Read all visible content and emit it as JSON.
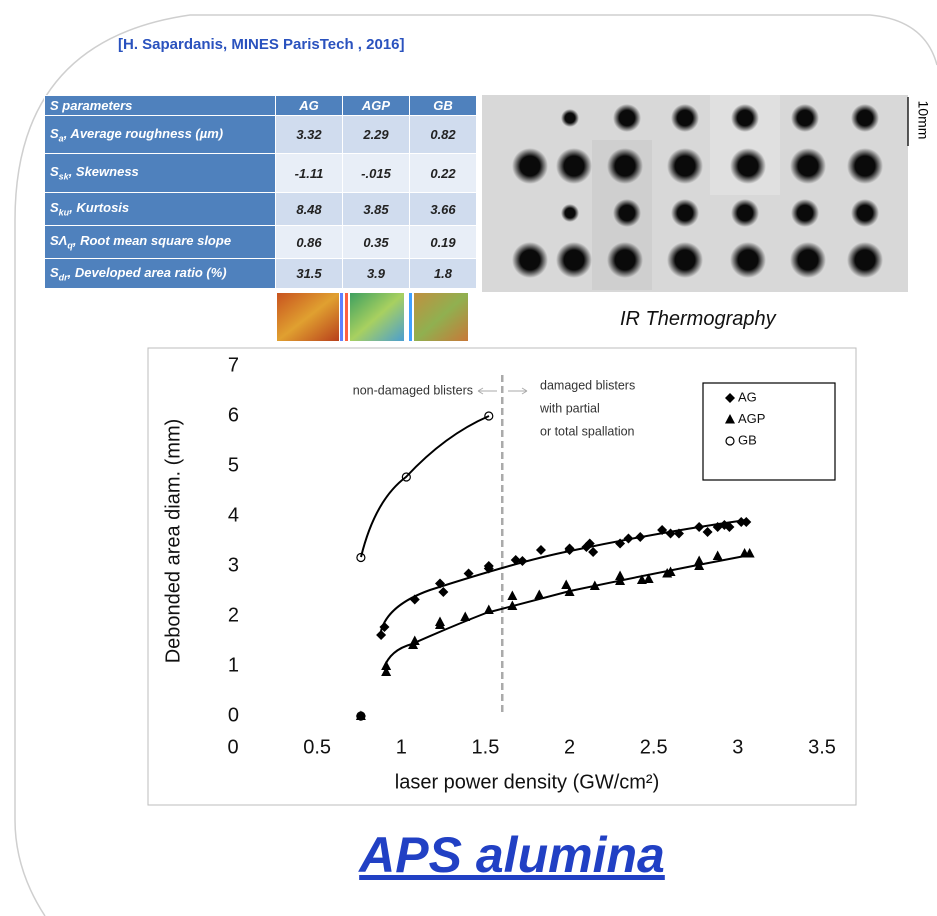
{
  "citation": "[H. Sapardanis, MINES ParisTech , 2016]",
  "table": {
    "header": [
      "S parameters",
      "AG",
      "AGP",
      "GB"
    ],
    "rows": [
      {
        "symbol": "S",
        "sub": "a",
        "desc": ", Average roughness (µm)",
        "values": [
          "3.32",
          "2.29",
          "0.82"
        ]
      },
      {
        "symbol": "S",
        "sub": "sk",
        "desc": ", Skewness",
        "values": [
          "-1.11",
          "-.015",
          "0.22"
        ]
      },
      {
        "symbol": "S",
        "sub": "ku",
        "desc": ", Kurtosis",
        "values": [
          "8.48",
          "3.85",
          "3.66"
        ]
      },
      {
        "symbol": "SΛ",
        "sub": "q",
        "desc": ", Root mean square slope",
        "values": [
          "0.86",
          "0.35",
          "0.19"
        ]
      },
      {
        "symbol": "S",
        "sub": "dr",
        "desc": ", Developed area ratio (%)",
        "values": [
          "31.5",
          "3.9",
          "1.8"
        ]
      }
    ]
  },
  "ir_image": {
    "scale_label": "10mm",
    "caption": "IR Thermography"
  },
  "chart_data": {
    "type": "scatter",
    "xlabel": "laser power density (GW/cm²)",
    "ylabel": "Debonded area diam. (mm)",
    "xlim": [
      0,
      3.5
    ],
    "xticks": [
      0,
      0.5,
      1,
      1.5,
      2,
      2.5,
      3,
      3.5
    ],
    "ylim": [
      0,
      7
    ],
    "yticks": [
      0,
      1,
      2,
      3,
      4,
      5,
      6,
      7
    ],
    "grid": false,
    "legend": "upper right",
    "threshold_x": 1.6,
    "annotations": {
      "left": "non-damaged blisters",
      "right": [
        "damaged blisters",
        "with partial",
        "or total spallation"
      ]
    },
    "series": [
      {
        "name": "AG",
        "color": "#000000",
        "marker": "diamond",
        "x": [
          0.76,
          0.88,
          0.9,
          1.08,
          1.23,
          1.25,
          1.4,
          1.52,
          1.52,
          1.68,
          1.72,
          1.83,
          2.0,
          2.0,
          2.1,
          2.12,
          2.14,
          2.3,
          2.35,
          2.42,
          2.55,
          2.6,
          2.65,
          2.77,
          2.82,
          2.88,
          2.92,
          2.95,
          3.02,
          3.05
        ],
        "values": [
          0,
          1.62,
          1.78,
          2.33,
          2.65,
          2.48,
          2.85,
          3.0,
          2.95,
          3.12,
          3.1,
          3.32,
          3.35,
          3.32,
          3.38,
          3.45,
          3.28,
          3.45,
          3.55,
          3.58,
          3.72,
          3.65,
          3.65,
          3.78,
          3.68,
          3.78,
          3.82,
          3.78,
          3.88,
          3.88
        ]
      },
      {
        "name": "AGP",
        "color": "#000000",
        "marker": "triangle",
        "x": [
          0.76,
          0.91,
          0.91,
          1.07,
          1.08,
          1.23,
          1.23,
          1.38,
          1.52,
          1.66,
          1.66,
          1.82,
          1.98,
          2.0,
          2.15,
          2.3,
          2.3,
          2.43,
          2.47,
          2.58,
          2.6,
          2.77,
          2.77,
          2.88,
          3.04,
          3.07
        ],
        "values": [
          0,
          1.0,
          0.88,
          1.42,
          1.5,
          1.82,
          1.88,
          1.98,
          2.12,
          2.4,
          2.2,
          2.42,
          2.62,
          2.48,
          2.6,
          2.7,
          2.8,
          2.72,
          2.74,
          2.85,
          2.88,
          3.0,
          3.1,
          3.2,
          3.25,
          3.25
        ]
      },
      {
        "name": "GB",
        "color": "#000000",
        "marker": "circle",
        "x": [
          0.76,
          0.76,
          1.03,
          1.52
        ],
        "values": [
          0,
          3.17,
          4.78,
          6.0
        ]
      }
    ]
  },
  "footer": {
    "title": "APS alumina"
  }
}
